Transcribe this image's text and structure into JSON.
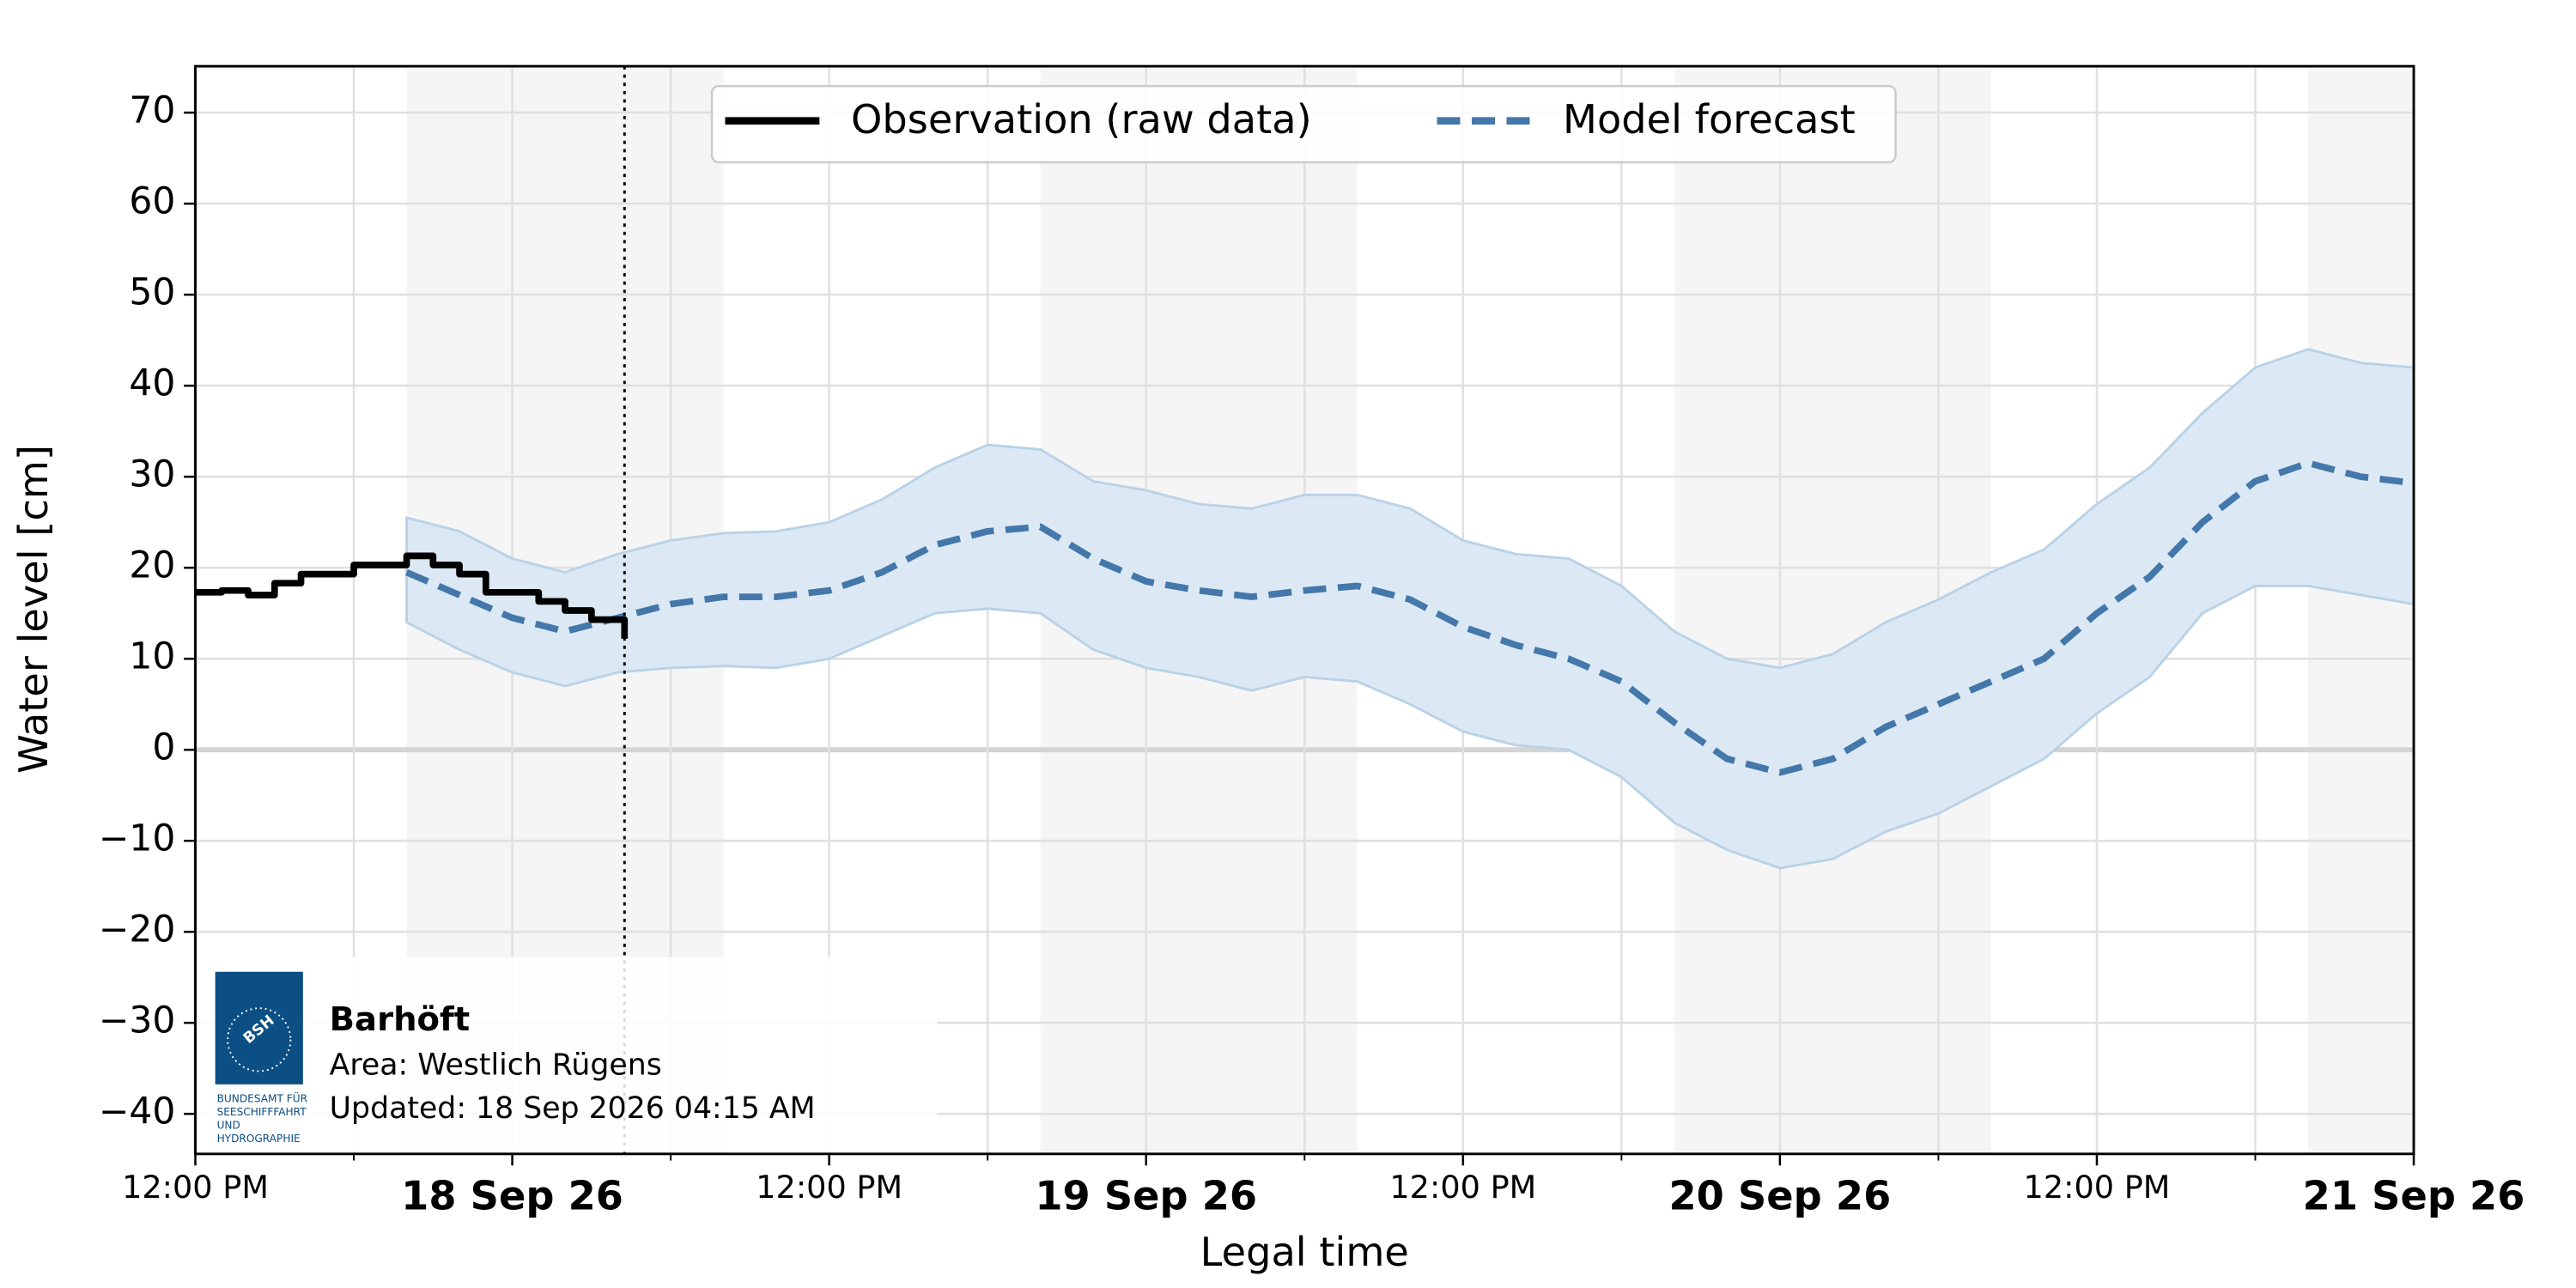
{
  "chart_data": {
    "type": "line",
    "xlabel": "Legal time",
    "ylabel": "Water level [cm]",
    "xlim": [
      "2026-09-17T12:00",
      "2026-09-21T00:00"
    ],
    "ylim": [
      -44.4,
      75.1
    ],
    "yticks": [
      {
        "value": -40,
        "label": "−40"
      },
      {
        "value": -30,
        "label": "−30"
      },
      {
        "value": -20,
        "label": "−20"
      },
      {
        "value": -10,
        "label": "−10"
      },
      0,
      10,
      20,
      30,
      40,
      50,
      60,
      70
    ],
    "xticks": [
      {
        "value": "2026-09-17T12:00",
        "label": "12:00 PM"
      },
      {
        "value": "2026-09-18T00:00",
        "label": "18 Sep 26"
      },
      {
        "value": "2026-09-18T12:00",
        "label": "12:00 PM"
      },
      {
        "value": "2026-09-19T00:00",
        "label": "19 Sep 26"
      },
      {
        "value": "2026-09-19T12:00",
        "label": "12:00 PM"
      },
      {
        "value": "2026-09-20T00:00",
        "label": "20 Sep 26"
      },
      {
        "value": "2026-09-20T12:00",
        "label": "12:00 PM"
      },
      {
        "value": "2026-09-21T00:00",
        "label": "21 Sep 26"
      }
    ],
    "xminorticks": [
      "2026-09-17T18:00",
      "2026-09-18T06:00",
      "2026-09-18T18:00",
      "2026-09-19T06:00",
      "2026-09-19T18:00",
      "2026-09-20T06:00",
      "2026-09-20T18:00"
    ],
    "grid": true,
    "zero_line": true,
    "night_bands": [
      [
        "2026-09-17T20:00",
        "2026-09-18T08:00"
      ],
      [
        "2026-09-18T20:00",
        "2026-09-19T08:00"
      ],
      [
        "2026-09-19T20:00",
        "2026-09-20T08:00"
      ],
      [
        "2026-09-20T20:00",
        "2026-09-21T00:00"
      ]
    ],
    "night_color": "#f5f5f5",
    "now": "2026-09-18T04:15",
    "legend": "upper center",
    "series": [
      {
        "name": "Observation (raw data)",
        "color": "#000000",
        "step": "post",
        "x": [
          "2026-09-17T12:00",
          "2026-09-17T13:00",
          "2026-09-17T14:00",
          "2026-09-17T15:00",
          "2026-09-17T16:00",
          "2026-09-17T17:00",
          "2026-09-17T18:00",
          "2026-09-17T19:00",
          "2026-09-17T20:00",
          "2026-09-17T21:00",
          "2026-09-17T22:00",
          "2026-09-17T23:00",
          "2026-09-18T00:00",
          "2026-09-18T01:00",
          "2026-09-18T02:00",
          "2026-09-18T03:00",
          "2026-09-18T04:00",
          "2026-09-18T04:15"
        ],
        "values": [
          17.3,
          17.5,
          17.0,
          18.3,
          19.3,
          19.3,
          20.3,
          20.3,
          21.3,
          20.3,
          19.3,
          17.3,
          17.3,
          16.3,
          15.3,
          14.3,
          14.3,
          12.2
        ]
      },
      {
        "name": "Model forecast",
        "color": "#4477aa",
        "band_color": "#dce9f4",
        "band_edge": "#b9d2e7",
        "x": [
          "2026-09-17T20:00",
          "2026-09-17T22:00",
          "2026-09-18T00:00",
          "2026-09-18T02:00",
          "2026-09-18T04:00",
          "2026-09-18T06:00",
          "2026-09-18T08:00",
          "2026-09-18T10:00",
          "2026-09-18T12:00",
          "2026-09-18T14:00",
          "2026-09-18T16:00",
          "2026-09-18T18:00",
          "2026-09-18T20:00",
          "2026-09-18T22:00",
          "2026-09-19T00:00",
          "2026-09-19T02:00",
          "2026-09-19T04:00",
          "2026-09-19T06:00",
          "2026-09-19T08:00",
          "2026-09-19T10:00",
          "2026-09-19T12:00",
          "2026-09-19T14:00",
          "2026-09-19T16:00",
          "2026-09-19T18:00",
          "2026-09-19T20:00",
          "2026-09-19T22:00",
          "2026-09-20T00:00",
          "2026-09-20T02:00",
          "2026-09-20T04:00",
          "2026-09-20T06:00",
          "2026-09-20T08:00",
          "2026-09-20T10:00",
          "2026-09-20T12:00",
          "2026-09-20T14:00",
          "2026-09-20T16:00",
          "2026-09-20T18:00",
          "2026-09-20T20:00",
          "2026-09-20T22:00",
          "2026-09-21T00:00"
        ],
        "values": [
          19.5,
          17,
          14.5,
          13,
          14.5,
          16,
          16.8,
          16.8,
          17.5,
          19.5,
          22.5,
          24,
          24.5,
          21,
          18.5,
          17.5,
          16.8,
          17.5,
          18,
          16.5,
          13.5,
          11.5,
          10,
          7.5,
          3,
          -1,
          -2.5,
          -1,
          2.5,
          5,
          7.5,
          10,
          15,
          19,
          25,
          29.5,
          31.5,
          30,
          29.3
        ],
        "upper": [
          25.5,
          24,
          21,
          19.5,
          21.5,
          23,
          23.8,
          24,
          25,
          27.5,
          31,
          33.5,
          33,
          29.5,
          28.5,
          27,
          26.5,
          28,
          28,
          26.5,
          23,
          21.5,
          21,
          18,
          13,
          10,
          9,
          10.5,
          14,
          16.5,
          19.5,
          22,
          27,
          31,
          37,
          42,
          44,
          42.5,
          42
        ],
        "lower": [
          14,
          11,
          8.5,
          7,
          8.5,
          9,
          9.2,
          9,
          10,
          12.5,
          15,
          15.5,
          15,
          11,
          9,
          8,
          6.5,
          8,
          7.5,
          5,
          2,
          0.5,
          0,
          -3,
          -8,
          -11,
          -13,
          -12,
          -9,
          -7,
          -4,
          -1,
          4,
          8,
          15,
          18,
          18,
          17,
          16
        ]
      }
    ],
    "station": {
      "name": "Barhöft",
      "area": "Area: Westlich Rügens",
      "updated": "Updated: 18 Sep 2026 04:15 AM"
    },
    "logo": {
      "text": "BSH",
      "lines": [
        "BUNDESAMT FÜR",
        "SEESCHIFFFAHRT",
        "UND",
        "HYDROGRAPHIE"
      ],
      "color": "#0b4f84"
    }
  }
}
